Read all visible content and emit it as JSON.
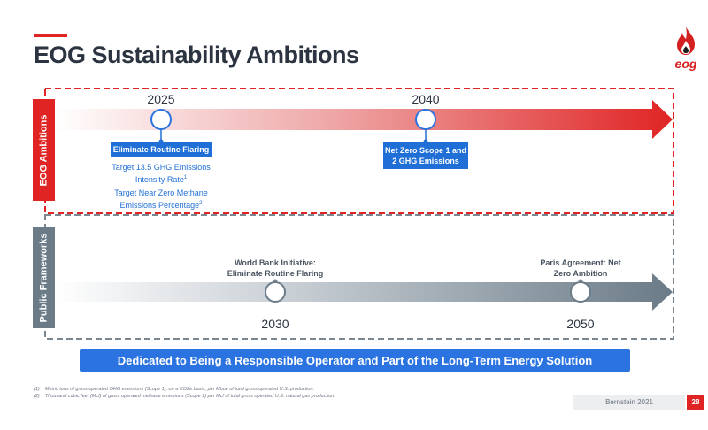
{
  "header": {
    "title": "EOG Sustainability Ambitions",
    "logo_text": "eog"
  },
  "ambitions": {
    "side_label": "EOG Ambitions",
    "milestones": [
      {
        "year": "2025",
        "label": "Eliminate Routine Flaring",
        "details": [
          {
            "text": "Target 13.5 GHG Emissions Intensity Rate",
            "footnote": "1"
          },
          {
            "text": "Target Near Zero Methane Emissions Percentage",
            "footnote": "2"
          }
        ]
      },
      {
        "year": "2040",
        "label": "Net Zero Scope 1 and 2 GHG Emissions"
      }
    ]
  },
  "frameworks": {
    "side_label": "Public Frameworks",
    "milestones": [
      {
        "year": "2030",
        "label": "World Bank Initiative: Eliminate Routine Flaring"
      },
      {
        "year": "2050",
        "label": "Paris Agreement: Net Zero Ambition"
      }
    ]
  },
  "banner": "Dedicated to Being a Responsible Operator and Part of the Long-Term Energy Solution",
  "footnotes": [
    {
      "marker": "(1)",
      "text": "Metric tons of gross operated GHG emissions (Scope 1), on a CO2e basis, per Mboe of total gross operated U.S. production."
    },
    {
      "marker": "(2)",
      "text": "Thousand cubic feet (Mcf) of gross operated methane emissions (Scope 1) per Mcf of total gross operated U.S. natural gas production."
    }
  ],
  "footer": {
    "source": "Bernstein 2021",
    "page": "28"
  },
  "colors": {
    "accent": "#e02424",
    "blue": "#1f6fd6",
    "grey": "#6b7b87"
  }
}
